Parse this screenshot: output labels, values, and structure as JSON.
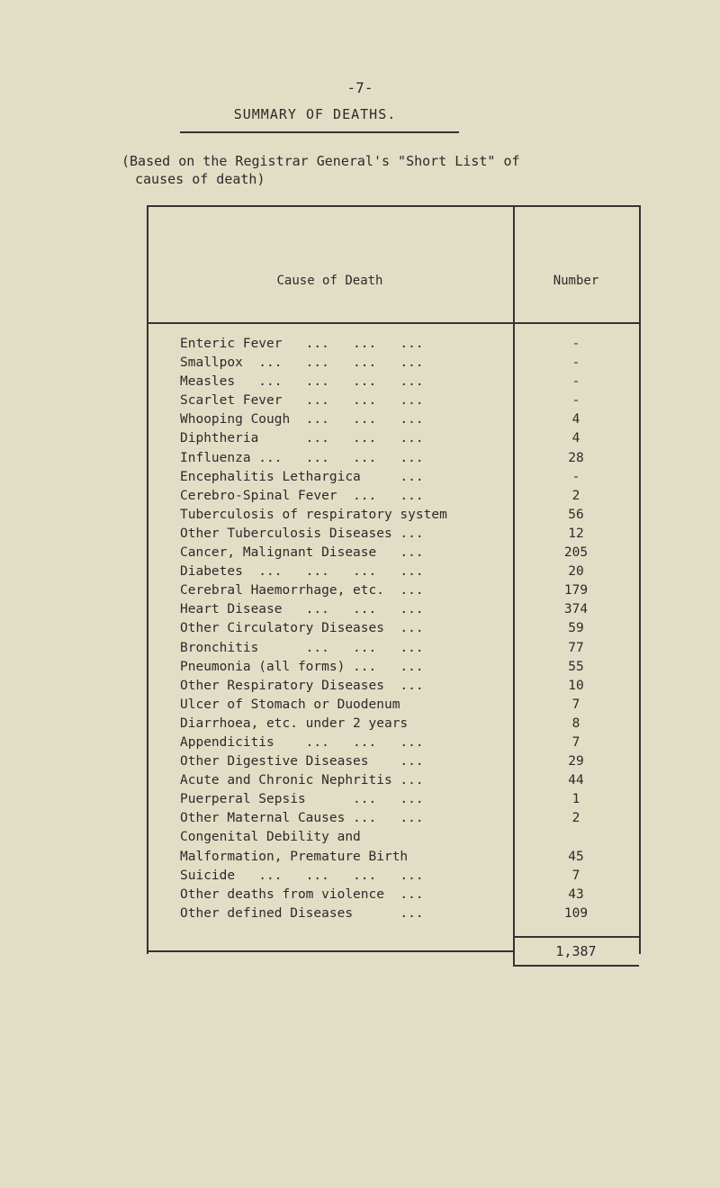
{
  "page_number": "-7-",
  "title": "SUMMARY OF DEATHS.",
  "subtitle_line1": "(Based on the Registrar General's \"Short List\" of",
  "subtitle_line2": "causes of death)",
  "table": {
    "headers": [
      "Cause of Death",
      "Number"
    ],
    "rows": [
      [
        "Enteric Fever   ...   ...   ...",
        "-"
      ],
      [
        "Smallpox  ...   ...   ...   ...",
        "-"
      ],
      [
        "Measles   ...   ...   ...   ...",
        "-"
      ],
      [
        "Scarlet Fever   ...   ...   ...",
        "-"
      ],
      [
        "Whooping Cough  ...   ...   ...",
        "4"
      ],
      [
        "Diphtheria      ...   ...   ...",
        "4"
      ],
      [
        "Influenza ...   ...   ...   ...",
        "28"
      ],
      [
        "Encephalitis Lethargica     ...",
        "-"
      ],
      [
        "Cerebro-Spinal Fever  ...   ...",
        "2"
      ],
      [
        "Tuberculosis of respiratory system",
        "56"
      ],
      [
        "Other Tuberculosis Diseases ...",
        "12"
      ],
      [
        "Cancer, Malignant Disease   ...",
        "205"
      ],
      [
        "Diabetes  ...   ...   ...   ...",
        "20"
      ],
      [
        "Cerebral Haemorrhage, etc.  ...",
        "179"
      ],
      [
        "Heart Disease   ...   ...   ...",
        "374"
      ],
      [
        "Other Circulatory Diseases  ...",
        "59"
      ],
      [
        "Bronchitis      ...   ...   ...",
        "77"
      ],
      [
        "Pneumonia (all forms) ...   ...",
        "55"
      ],
      [
        "Other Respiratory Diseases  ...",
        "10"
      ],
      [
        "Ulcer of Stomach or Duodenum",
        "7"
      ],
      [
        "Diarrhoea, etc. under 2 years",
        "8"
      ],
      [
        "Appendicitis    ...   ...   ...",
        "7"
      ],
      [
        "Other Digestive Diseases    ...",
        "29"
      ],
      [
        "Acute and Chronic Nephritis ...",
        "44"
      ],
      [
        "Puerperal Sepsis      ...   ...",
        "1"
      ],
      [
        "Other Maternal Causes ...   ...",
        "2"
      ],
      [
        "Congenital Debility and",
        ""
      ],
      [
        "Malformation, Premature Birth",
        "45"
      ],
      [
        "Suicide   ...   ...   ...   ...",
        "7"
      ],
      [
        "Other deaths from violence  ...",
        "43"
      ],
      [
        "Other defined Diseases      ...",
        "109"
      ]
    ],
    "total": "1,387"
  }
}
